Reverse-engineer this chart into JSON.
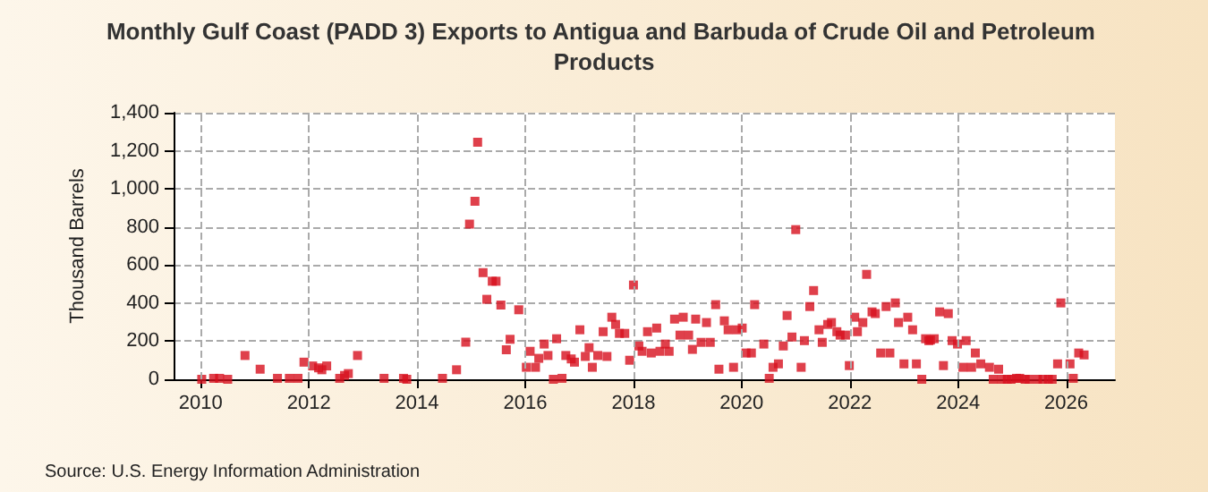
{
  "chart_data": {
    "type": "scatter",
    "title": "Monthly Gulf Coast (PADD 3) Exports to Antigua and Barbuda of Crude Oil and Petroleum Products",
    "ylabel": "Thousand Barrels",
    "annotations": [
      "Source: U.S. Energy Information Administration"
    ],
    "x": [
      2010.02,
      2010.24,
      2010.35,
      2010.5,
      2010.82,
      2011.1,
      2011.42,
      2011.64,
      2011.8,
      2011.91,
      2012.07,
      2012.18,
      2012.24,
      2012.33,
      2012.57,
      2012.66,
      2012.73,
      2012.9,
      2013.39,
      2013.75,
      2013.81,
      2014.47,
      2014.73,
      2014.9,
      2014.97,
      2015.07,
      2015.12,
      2015.22,
      2015.29,
      2015.39,
      2015.46,
      2015.55,
      2015.65,
      2015.72,
      2015.88,
      2016.02,
      2016.09,
      2016.19,
      2016.25,
      2016.35,
      2016.42,
      2016.52,
      2016.58,
      2016.68,
      2016.75,
      2016.85,
      2016.91,
      2017.01,
      2017.11,
      2017.18,
      2017.24,
      2017.34,
      2017.44,
      2017.51,
      2017.6,
      2017.67,
      2017.74,
      2017.84,
      2017.93,
      2018.0,
      2018.1,
      2018.16,
      2018.26,
      2018.33,
      2018.43,
      2018.49,
      2018.59,
      2018.66,
      2018.76,
      2018.86,
      2018.92,
      2019.02,
      2019.09,
      2019.15,
      2019.25,
      2019.35,
      2019.42,
      2019.52,
      2019.58,
      2019.68,
      2019.75,
      2019.85,
      2019.91,
      2020.01,
      2020.08,
      2020.18,
      2020.24,
      2020.41,
      2020.51,
      2020.58,
      2020.68,
      2020.77,
      2020.84,
      2020.93,
      2021.0,
      2021.1,
      2021.16,
      2021.26,
      2021.33,
      2021.43,
      2021.49,
      2021.59,
      2021.66,
      2021.76,
      2021.82,
      2021.92,
      2021.99,
      2022.09,
      2022.14,
      2022.24,
      2022.31,
      2022.41,
      2022.47,
      2022.57,
      2022.67,
      2022.74,
      2022.84,
      2022.9,
      2023.0,
      2023.07,
      2023.16,
      2023.23,
      2023.33,
      2023.4,
      2023.46,
      2023.49,
      2023.56,
      2023.66,
      2023.73,
      2023.82,
      2023.89,
      2023.99,
      2024.09,
      2024.15,
      2024.25,
      2024.32,
      2024.42,
      2024.58,
      2024.65,
      2024.75,
      2024.81,
      2024.91,
      2024.98,
      2025.08,
      2025.14,
      2025.24,
      2025.31,
      2025.47,
      2025.57,
      2025.67,
      2025.74,
      2025.84,
      2025.9,
      2026.07,
      2026.13,
      2026.23,
      2026.33
    ],
    "series": [
      {
        "color": "#d7101e",
        "values": [
          0,
          5,
          5,
          0,
          125,
          53,
          5,
          5,
          5,
          90,
          70,
          60,
          50,
          70,
          5,
          20,
          30,
          125,
          5,
          5,
          0,
          5,
          50,
          195,
          815,
          935,
          1245,
          560,
          420,
          515,
          515,
          390,
          155,
          210,
          365,
          63,
          147,
          63,
          110,
          185,
          125,
          0,
          213,
          5,
          125,
          107,
          90,
          260,
          120,
          166,
          63,
          125,
          250,
          120,
          326,
          288,
          241,
          241,
          100,
          495,
          175,
          147,
          250,
          138,
          269,
          147,
          185,
          147,
          316,
          232,
          326,
          232,
          157,
          316,
          194,
          298,
          194,
          392,
          53,
          307,
          260,
          63,
          260,
          269,
          138,
          138,
          392,
          185,
          5,
          63,
          81,
          175,
          335,
          222,
          786,
          63,
          203,
          382,
          466,
          260,
          194,
          288,
          298,
          250,
          232,
          232,
          72,
          326,
          250,
          298,
          551,
          354,
          345,
          138,
          382,
          138,
          401,
          298,
          81,
          326,
          260,
          81,
          0,
          213,
          203,
          206,
          213,
          354,
          72,
          345,
          203,
          185,
          63,
          203,
          63,
          138,
          81,
          63,
          0,
          53,
          0,
          0,
          0,
          5,
          5,
          0,
          0,
          0,
          0,
          0,
          0,
          81,
          401,
          81,
          5,
          138,
          128
        ]
      }
    ],
    "xlim": [
      2009.5,
      2026.9
    ],
    "xticks": [
      2010,
      2012,
      2014,
      2016,
      2018,
      2020,
      2022,
      2024,
      2026
    ],
    "ylim": [
      0,
      1400
    ],
    "yticks": [
      0,
      200,
      400,
      600,
      800,
      {
        "value": 1000,
        "label": "1,000"
      },
      {
        "value": 1200,
        "label": "1,200"
      },
      {
        "value": 1400,
        "label": "1,400"
      }
    ],
    "grid": true,
    "marker": "square"
  }
}
